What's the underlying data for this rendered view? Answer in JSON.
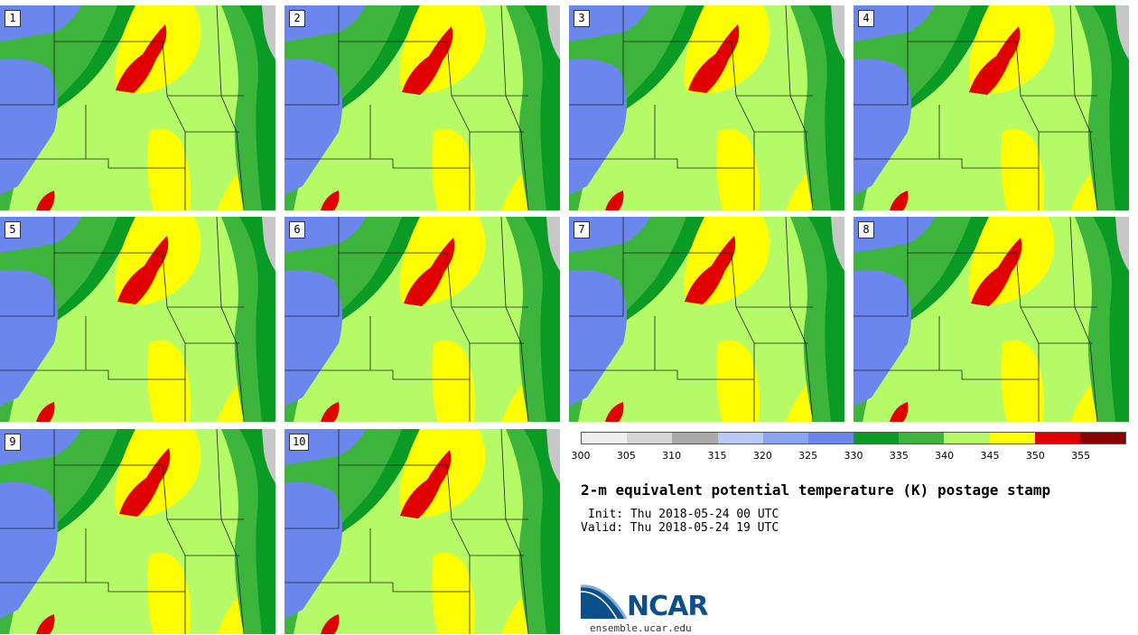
{
  "stamps": [
    {
      "label": "1"
    },
    {
      "label": "2"
    },
    {
      "label": "3"
    },
    {
      "label": "4"
    },
    {
      "label": "5"
    },
    {
      "label": "6"
    },
    {
      "label": "7"
    },
    {
      "label": "8"
    },
    {
      "label": "9"
    },
    {
      "label": "10"
    }
  ],
  "colorbar": {
    "ticks": [
      "300",
      "305",
      "310",
      "315",
      "320",
      "325",
      "330",
      "335",
      "340",
      "345",
      "350",
      "355"
    ],
    "colors": [
      "#efefef",
      "#d6d6d6",
      "#a9a9a9",
      "#b8c8f7",
      "#8aa5f0",
      "#6b86ec",
      "#0a9b24",
      "#3db53d",
      "#b5fb68",
      "#fefe00",
      "#e00000",
      "#8b0000"
    ]
  },
  "map_colors": {
    "water_gray": "#c7c7c7",
    "dark_green": "#0a9b24",
    "mid_green": "#3db53d",
    "light_green": "#b5fb68",
    "yellow": "#fefe00",
    "red": "#e00000",
    "blue": "#6b86ec"
  },
  "title": "2-m equivalent potential temperature (K) postage stamp",
  "init": "Init: Thu 2018-05-24 00 UTC",
  "valid": "Valid: Thu 2018-05-24 19 UTC",
  "logo": {
    "word": "NCAR",
    "url": "ensemble.ucar.edu"
  }
}
